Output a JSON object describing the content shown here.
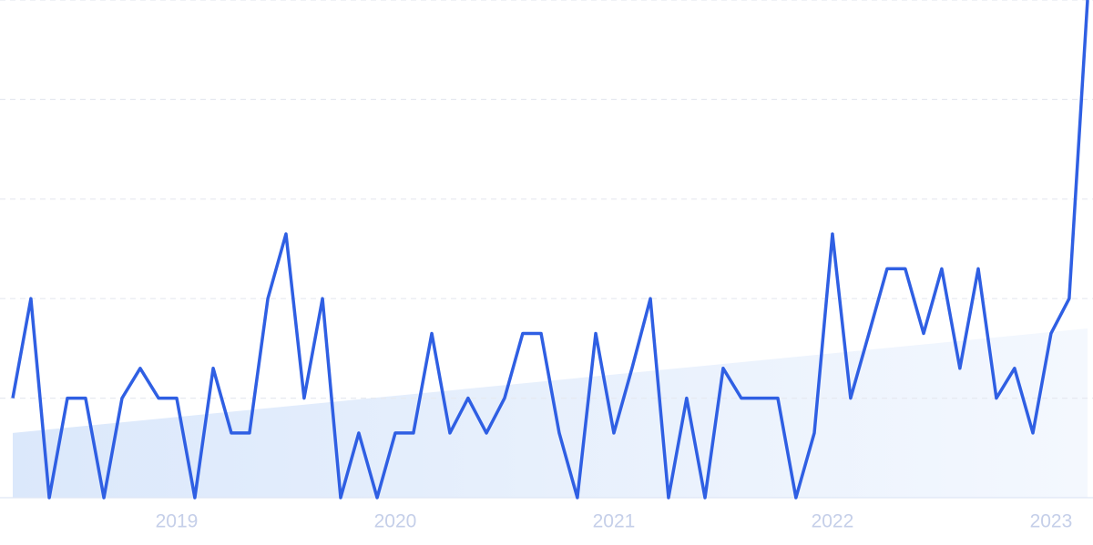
{
  "chart_data": {
    "type": "line",
    "x": [
      2018.25,
      2018.333,
      2018.417,
      2018.5,
      2018.583,
      2018.667,
      2018.75,
      2018.833,
      2018.917,
      2019,
      2019.083,
      2019.167,
      2019.25,
      2019.333,
      2019.417,
      2019.5,
      2019.583,
      2019.667,
      2019.75,
      2019.833,
      2019.917,
      2020,
      2020.083,
      2020.167,
      2020.25,
      2020.333,
      2020.417,
      2020.5,
      2020.583,
      2020.667,
      2020.75,
      2020.833,
      2020.917,
      2021,
      2021.083,
      2021.167,
      2021.25,
      2021.333,
      2021.417,
      2021.5,
      2021.583,
      2021.667,
      2021.75,
      2021.833,
      2021.917,
      2022,
      2022.083,
      2022.167,
      2022.25,
      2022.333,
      2022.417,
      2022.5,
      2022.583,
      2022.667,
      2022.75,
      2022.833,
      2022.917,
      2023,
      2023.083,
      2023.167
    ],
    "series": [
      {
        "color": "#2f5fe3",
        "values": [
          1,
          2,
          0,
          1,
          1,
          0,
          1,
          1.3,
          1,
          1,
          0,
          1.3,
          0.65,
          0.65,
          2,
          2.65,
          1,
          2,
          0,
          0.65,
          0,
          0.65,
          0.65,
          1.65,
          0.65,
          1,
          0.65,
          1,
          1.65,
          1.65,
          0.65,
          0,
          1.65,
          0.65,
          1.3,
          2,
          0,
          1,
          0,
          1.3,
          1,
          1,
          1,
          0,
          0.65,
          2.65,
          1,
          1.65,
          2.3,
          2.3,
          1.65,
          2.3,
          1.3,
          2.3,
          1,
          1.3,
          0.65,
          1.65,
          2,
          5
        ]
      }
    ],
    "trend": {
      "color": "#dbe8fb",
      "x": [
        2018.25,
        2023.167
      ],
      "values": [
        0.65,
        1.7
      ]
    },
    "xlim": [
      2018.25,
      2023.167
    ],
    "xticks": [
      2019,
      2020,
      2021,
      2022,
      2023
    ],
    "ylim": [
      0,
      5
    ],
    "yticks": [
      0,
      1,
      2,
      3,
      4,
      5
    ],
    "grid": true
  }
}
